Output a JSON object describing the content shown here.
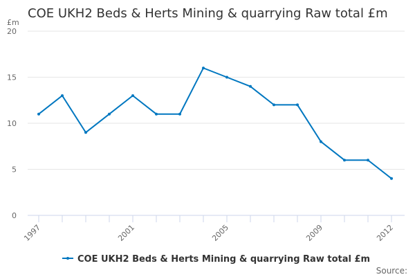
{
  "chart_data": {
    "type": "line",
    "title": "COE UKH2 Beds & Herts Mining & quarrying Raw total £m",
    "ylabel": "£m",
    "xlabel": "",
    "x": [
      "1997",
      "1998",
      "1999",
      "2000",
      "2001",
      "2002",
      "2003",
      "2004",
      "2005",
      "2006",
      "2007",
      "2008",
      "2009",
      "2010",
      "2011",
      "2012"
    ],
    "x_tick_labels": [
      "1997",
      "2001",
      "2005",
      "2009",
      "2012"
    ],
    "y_ticks": [
      "0",
      "5",
      "10",
      "15",
      "20"
    ],
    "ylim": [
      0,
      20
    ],
    "grid": true,
    "legend_position": "bottom",
    "series": [
      {
        "name": "COE UKH2 Beds & Herts Mining & quarrying Raw total £m",
        "color": "#0077c0",
        "values": [
          11,
          13,
          9,
          11,
          13,
          11,
          11,
          16,
          15,
          14,
          12,
          12,
          8,
          6,
          6,
          4
        ]
      }
    ],
    "source": "Source:"
  }
}
